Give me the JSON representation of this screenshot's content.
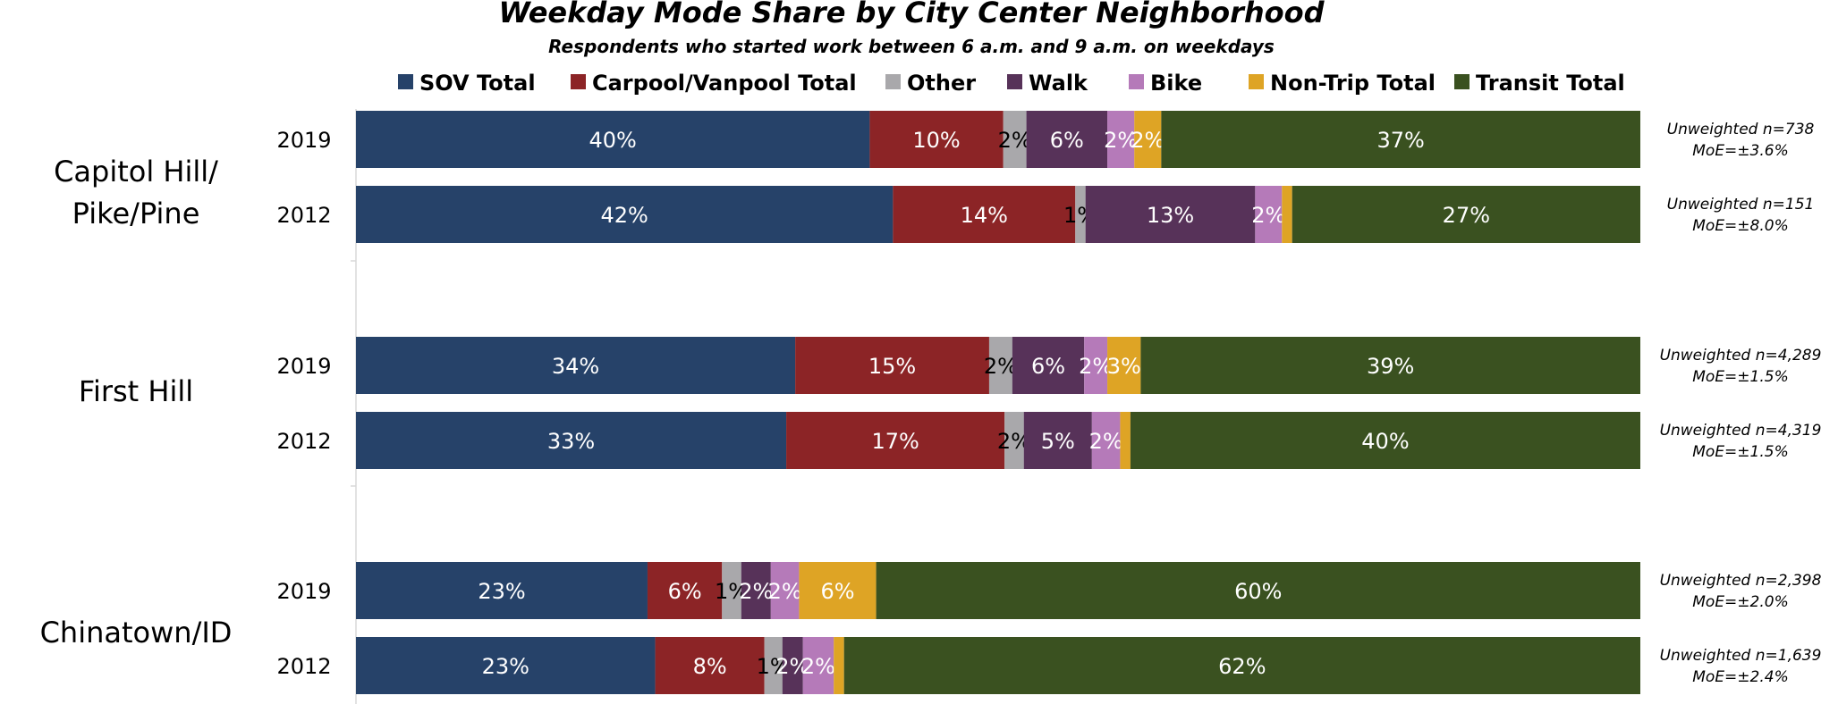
{
  "chart_data": {
    "type": "bar",
    "orientation": "horizontal",
    "stacked": true,
    "title": "Weekday Mode Share by City Center Neighborhood",
    "subtitle": "Respondents who started work between 6 a.m. and 9 a.m. on weekdays",
    "xlim": [
      0,
      100
    ],
    "legend_position": "top",
    "series": [
      {
        "name": "SOV Total",
        "color": "#264269",
        "label_color": "#ffffff"
      },
      {
        "name": "Carpool/Vanpool Total",
        "color": "#8c2426",
        "label_color": "#ffffff"
      },
      {
        "name": "Other",
        "color": "#a9a8ab",
        "label_color": "#000000"
      },
      {
        "name": "Walk",
        "color": "#573259",
        "label_color": "#ffffff"
      },
      {
        "name": "Bike",
        "color": "#b57ab9",
        "label_color": "#ffffff"
      },
      {
        "name": "Non-Trip Total",
        "color": "#dea425",
        "label_color": "#ffffff"
      },
      {
        "name": "Transit Total",
        "color": "#3a5120",
        "label_color": "#ffffff"
      }
    ],
    "groups": [
      {
        "label_lines": [
          "Capitol Hill/",
          "Pike/Pine"
        ],
        "rows": [
          {
            "year": "2019",
            "values": [
              40,
              10.4,
              1.8,
              6.3,
              2.1,
              2.1,
              37.3
            ],
            "labels": [
              "40%",
              "10%",
              "2%",
              "6%",
              "2%",
              "2%",
              "37%"
            ],
            "note_lines": [
              "Unweighted n=738",
              "MoE=±3.6%"
            ]
          },
          {
            "year": "2012",
            "values": [
              42.1,
              14.3,
              0.8,
              13.3,
              2.1,
              0.8,
              27.3
            ],
            "labels": [
              "42%",
              "14%",
              "1%",
              "13%",
              "2%",
              "",
              "27%"
            ],
            "note_lines": [
              "Unweighted n=151",
              "MoE=±8.0%"
            ]
          }
        ]
      },
      {
        "label_lines": [
          "First Hill"
        ],
        "rows": [
          {
            "year": "2019",
            "values": [
              34.2,
              15.1,
              1.8,
              5.6,
              1.8,
              2.6,
              38.9
            ],
            "labels": [
              "34%",
              "15%",
              "2%",
              "6%",
              "2%",
              "3%",
              "39%"
            ],
            "note_lines": [
              "Unweighted n=4,289",
              "MoE=±1.5%"
            ]
          },
          {
            "year": "2012",
            "values": [
              33.5,
              17.0,
              1.5,
              5.3,
              2.2,
              0.8,
              39.7
            ],
            "labels": [
              "33%",
              "17%",
              "2%",
              "5%",
              "2%",
              "",
              "40%"
            ],
            "note_lines": [
              "Unweighted n=4,319",
              "MoE=±1.5%"
            ]
          }
        ]
      },
      {
        "label_lines": [
          "Chinatown/ID"
        ],
        "rows": [
          {
            "year": "2019",
            "values": [
              22.7,
              5.8,
              1.5,
              2.3,
              2.2,
              6.0,
              59.5
            ],
            "labels": [
              "23%",
              "6%",
              "1%",
              "2%",
              "2%",
              "6%",
              "60%"
            ],
            "note_lines": [
              "Unweighted n=2,398",
              "MoE=±2.0%"
            ]
          },
          {
            "year": "2012",
            "values": [
              23.3,
              8.5,
              1.4,
              1.6,
              2.4,
              0.8,
              62.0
            ],
            "labels": [
              "23%",
              "8%",
              "1%",
              "2%",
              "2%",
              "",
              "62%"
            ],
            "note_lines": [
              "Unweighted n=1,639",
              "MoE=±2.4%"
            ]
          }
        ]
      }
    ]
  }
}
